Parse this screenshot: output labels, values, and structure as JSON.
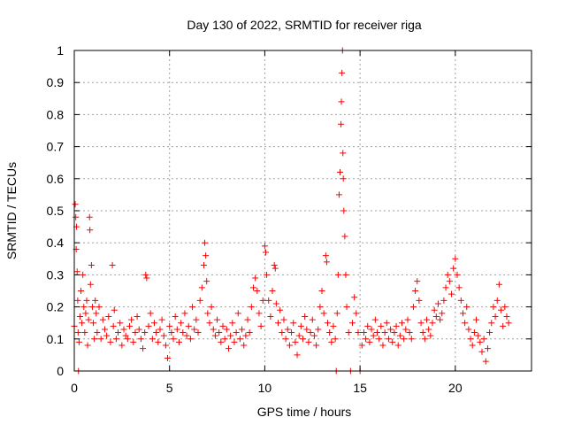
{
  "chart_data": {
    "type": "scatter",
    "title": "Day 130 of 2022, SRMTID for receiver riga",
    "xlabel": "GPS time / hours",
    "ylabel": "SRMTID / TECUs",
    "xlim": [
      0,
      24
    ],
    "ylim": [
      0,
      1
    ],
    "grid": true,
    "marker": "plus",
    "series_color": "#ff0000",
    "x_ticks": [
      {
        "value": 0,
        "label": "0"
      },
      {
        "value": 5,
        "label": "5"
      },
      {
        "value": 10,
        "label": "10"
      },
      {
        "value": 15,
        "label": "15"
      },
      {
        "value": 20,
        "label": "20"
      }
    ],
    "y_ticks": [
      {
        "value": 0,
        "label": "0"
      },
      {
        "value": 0.1,
        "label": "0.1"
      },
      {
        "value": 0.2,
        "label": "0.2"
      },
      {
        "value": 0.3,
        "label": "0.3"
      },
      {
        "value": 0.4,
        "label": "0.4"
      },
      {
        "value": 0.5,
        "label": "0.5"
      },
      {
        "value": 0.6,
        "label": "0.6"
      },
      {
        "value": 0.7,
        "label": "0.7"
      },
      {
        "value": 0.8,
        "label": "0.8"
      },
      {
        "value": 0.9,
        "label": "0.9"
      },
      {
        "value": 1,
        "label": "1"
      }
    ],
    "series": [
      {
        "name": "SRMTID",
        "points": [
          [
            0.0,
            0.14
          ],
          [
            0.05,
            0.52
          ],
          [
            0.08,
            0.48
          ],
          [
            0.1,
            0.38
          ],
          [
            0.12,
            0.45
          ],
          [
            0.15,
            0.31
          ],
          [
            0.18,
            0.22
          ],
          [
            0.2,
            0.12
          ],
          [
            0.22,
            0.0
          ],
          [
            0.25,
            0.09
          ],
          [
            0.3,
            0.17
          ],
          [
            0.35,
            0.25
          ],
          [
            0.4,
            0.15
          ],
          [
            0.45,
            0.3
          ],
          [
            0.5,
            0.2
          ],
          [
            0.55,
            0.12
          ],
          [
            0.6,
            0.18
          ],
          [
            0.65,
            0.22
          ],
          [
            0.7,
            0.08
          ],
          [
            0.75,
            0.16
          ],
          [
            0.8,
            0.48
          ],
          [
            0.82,
            0.44
          ],
          [
            0.85,
            0.27
          ],
          [
            0.9,
            0.33
          ],
          [
            0.95,
            0.2
          ],
          [
            1.0,
            0.15
          ],
          [
            1.05,
            0.1
          ],
          [
            1.1,
            0.22
          ],
          [
            1.15,
            0.18
          ],
          [
            1.2,
            0.12
          ],
          [
            1.3,
            0.2
          ],
          [
            1.4,
            0.1
          ],
          [
            1.5,
            0.16
          ],
          [
            1.6,
            0.13
          ],
          [
            1.7,
            0.11
          ],
          [
            1.8,
            0.17
          ],
          [
            1.9,
            0.09
          ],
          [
            2.0,
            0.33
          ],
          [
            2.05,
            0.14
          ],
          [
            2.1,
            0.19
          ],
          [
            2.2,
            0.1
          ],
          [
            2.3,
            0.12
          ],
          [
            2.4,
            0.15
          ],
          [
            2.5,
            0.08
          ],
          [
            2.6,
            0.13
          ],
          [
            2.7,
            0.11
          ],
          [
            2.8,
            0.1
          ],
          [
            2.9,
            0.14
          ],
          [
            3.0,
            0.16
          ],
          [
            3.1,
            0.09
          ],
          [
            3.2,
            0.12
          ],
          [
            3.3,
            0.17
          ],
          [
            3.4,
            0.13
          ],
          [
            3.5,
            0.1
          ],
          [
            3.6,
            0.07
          ],
          [
            3.7,
            0.12
          ],
          [
            3.75,
            0.3
          ],
          [
            3.8,
            0.29
          ],
          [
            3.9,
            0.14
          ],
          [
            4.0,
            0.18
          ],
          [
            4.1,
            0.1
          ],
          [
            4.2,
            0.15
          ],
          [
            4.3,
            0.12
          ],
          [
            4.4,
            0.09
          ],
          [
            4.5,
            0.13
          ],
          [
            4.6,
            0.16
          ],
          [
            4.7,
            0.11
          ],
          [
            4.8,
            0.08
          ],
          [
            4.9,
            0.04
          ],
          [
            5.0,
            0.14
          ],
          [
            5.1,
            0.12
          ],
          [
            5.2,
            0.1
          ],
          [
            5.3,
            0.17
          ],
          [
            5.4,
            0.13
          ],
          [
            5.5,
            0.09
          ],
          [
            5.6,
            0.15
          ],
          [
            5.7,
            0.12
          ],
          [
            5.8,
            0.18
          ],
          [
            5.9,
            0.11
          ],
          [
            6.0,
            0.14
          ],
          [
            6.1,
            0.1
          ],
          [
            6.2,
            0.2
          ],
          [
            6.3,
            0.13
          ],
          [
            6.4,
            0.16
          ],
          [
            6.5,
            0.12
          ],
          [
            6.6,
            0.22
          ],
          [
            6.7,
            0.26
          ],
          [
            6.8,
            0.33
          ],
          [
            6.85,
            0.4
          ],
          [
            6.9,
            0.36
          ],
          [
            6.95,
            0.28
          ],
          [
            7.0,
            0.18
          ],
          [
            7.1,
            0.15
          ],
          [
            7.2,
            0.2
          ],
          [
            7.3,
            0.13
          ],
          [
            7.4,
            0.11
          ],
          [
            7.5,
            0.16
          ],
          [
            7.6,
            0.12
          ],
          [
            7.7,
            0.09
          ],
          [
            7.8,
            0.14
          ],
          [
            7.9,
            0.1
          ],
          [
            8.0,
            0.13
          ],
          [
            8.1,
            0.07
          ],
          [
            8.2,
            0.11
          ],
          [
            8.3,
            0.15
          ],
          [
            8.4,
            0.09
          ],
          [
            8.5,
            0.12
          ],
          [
            8.6,
            0.18
          ],
          [
            8.7,
            0.1
          ],
          [
            8.8,
            0.13
          ],
          [
            8.9,
            0.08
          ],
          [
            9.0,
            0.11
          ],
          [
            9.1,
            0.16
          ],
          [
            9.2,
            0.12
          ],
          [
            9.3,
            0.2
          ],
          [
            9.4,
            0.26
          ],
          [
            9.5,
            0.29
          ],
          [
            9.6,
            0.25
          ],
          [
            9.7,
            0.18
          ],
          [
            9.8,
            0.14
          ],
          [
            9.9,
            0.22
          ],
          [
            10.0,
            0.39
          ],
          [
            10.05,
            0.37
          ],
          [
            10.1,
            0.3
          ],
          [
            10.2,
            0.22
          ],
          [
            10.3,
            0.17
          ],
          [
            10.4,
            0.25
          ],
          [
            10.5,
            0.33
          ],
          [
            10.55,
            0.32
          ],
          [
            10.6,
            0.21
          ],
          [
            10.7,
            0.15
          ],
          [
            10.8,
            0.19
          ],
          [
            10.9,
            0.12
          ],
          [
            11.0,
            0.16
          ],
          [
            11.1,
            0.1
          ],
          [
            11.2,
            0.13
          ],
          [
            11.3,
            0.08
          ],
          [
            11.4,
            0.12
          ],
          [
            11.5,
            0.15
          ],
          [
            11.6,
            0.09
          ],
          [
            11.7,
            0.05
          ],
          [
            11.8,
            0.11
          ],
          [
            11.9,
            0.14
          ],
          [
            12.0,
            0.1
          ],
          [
            12.1,
            0.17
          ],
          [
            12.2,
            0.13
          ],
          [
            12.3,
            0.09
          ],
          [
            12.4,
            0.12
          ],
          [
            12.5,
            0.16
          ],
          [
            12.6,
            0.11
          ],
          [
            12.7,
            0.08
          ],
          [
            12.8,
            0.13
          ],
          [
            12.9,
            0.2
          ],
          [
            13.0,
            0.25
          ],
          [
            13.1,
            0.18
          ],
          [
            13.2,
            0.36
          ],
          [
            13.25,
            0.34
          ],
          [
            13.3,
            0.15
          ],
          [
            13.4,
            0.12
          ],
          [
            13.5,
            0.09
          ],
          [
            13.6,
            0.14
          ],
          [
            13.7,
            0.1
          ],
          [
            13.75,
            0.0
          ],
          [
            13.8,
            0.18
          ],
          [
            13.85,
            0.3
          ],
          [
            13.9,
            0.55
          ],
          [
            13.95,
            0.62
          ],
          [
            14.0,
            0.77
          ],
          [
            14.02,
            0.84
          ],
          [
            14.05,
            0.93
          ],
          [
            14.08,
            1.0
          ],
          [
            14.1,
            0.68
          ],
          [
            14.12,
            0.6
          ],
          [
            14.15,
            0.5
          ],
          [
            14.2,
            0.42
          ],
          [
            14.25,
            0.3
          ],
          [
            14.3,
            0.2
          ],
          [
            14.4,
            0.12
          ],
          [
            14.5,
            0.0
          ],
          [
            14.6,
            0.15
          ],
          [
            14.7,
            0.23
          ],
          [
            14.8,
            0.18
          ],
          [
            14.9,
            0.12
          ],
          [
            15.0,
            0.0
          ],
          [
            15.1,
            0.08
          ],
          [
            15.2,
            0.12
          ],
          [
            15.3,
            0.1
          ],
          [
            15.4,
            0.14
          ],
          [
            15.5,
            0.09
          ],
          [
            15.6,
            0.13
          ],
          [
            15.7,
            0.11
          ],
          [
            15.8,
            0.16
          ],
          [
            15.9,
            0.12
          ],
          [
            16.0,
            0.1
          ],
          [
            16.1,
            0.14
          ],
          [
            16.2,
            0.08
          ],
          [
            16.3,
            0.12
          ],
          [
            16.4,
            0.15
          ],
          [
            16.5,
            0.1
          ],
          [
            16.6,
            0.13
          ],
          [
            16.7,
            0.09
          ],
          [
            16.8,
            0.12
          ],
          [
            16.9,
            0.14
          ],
          [
            17.0,
            0.08
          ],
          [
            17.1,
            0.11
          ],
          [
            17.2,
            0.15
          ],
          [
            17.3,
            0.1
          ],
          [
            17.4,
            0.13
          ],
          [
            17.5,
            0.16
          ],
          [
            17.6,
            0.12
          ],
          [
            17.7,
            0.1
          ],
          [
            17.8,
            0.2
          ],
          [
            17.9,
            0.25
          ],
          [
            18.0,
            0.28
          ],
          [
            18.1,
            0.22
          ],
          [
            18.2,
            0.15
          ],
          [
            18.3,
            0.12
          ],
          [
            18.4,
            0.1
          ],
          [
            18.5,
            0.16
          ],
          [
            18.6,
            0.13
          ],
          [
            18.7,
            0.11
          ],
          [
            18.8,
            0.15
          ],
          [
            18.9,
            0.19
          ],
          [
            19.0,
            0.17
          ],
          [
            19.1,
            0.21
          ],
          [
            19.2,
            0.16
          ],
          [
            19.3,
            0.18
          ],
          [
            19.4,
            0.22
          ],
          [
            19.5,
            0.26
          ],
          [
            19.6,
            0.3
          ],
          [
            19.7,
            0.28
          ],
          [
            19.8,
            0.24
          ],
          [
            19.9,
            0.32
          ],
          [
            20.0,
            0.35
          ],
          [
            20.1,
            0.3
          ],
          [
            20.2,
            0.26
          ],
          [
            20.3,
            0.22
          ],
          [
            20.4,
            0.18
          ],
          [
            20.5,
            0.15
          ],
          [
            20.6,
            0.2
          ],
          [
            20.7,
            0.13
          ],
          [
            20.8,
            0.1
          ],
          [
            20.9,
            0.08
          ],
          [
            21.0,
            0.12
          ],
          [
            21.1,
            0.16
          ],
          [
            21.2,
            0.11
          ],
          [
            21.3,
            0.09
          ],
          [
            21.4,
            0.06
          ],
          [
            21.5,
            0.1
          ],
          [
            21.6,
            0.03
          ],
          [
            21.7,
            0.07
          ],
          [
            21.8,
            0.12
          ],
          [
            21.9,
            0.15
          ],
          [
            22.0,
            0.2
          ],
          [
            22.1,
            0.17
          ],
          [
            22.2,
            0.22
          ],
          [
            22.3,
            0.27
          ],
          [
            22.4,
            0.19
          ],
          [
            22.5,
            0.14
          ],
          [
            22.6,
            0.2
          ],
          [
            22.7,
            0.17
          ],
          [
            22.8,
            0.15
          ]
        ]
      }
    ]
  }
}
